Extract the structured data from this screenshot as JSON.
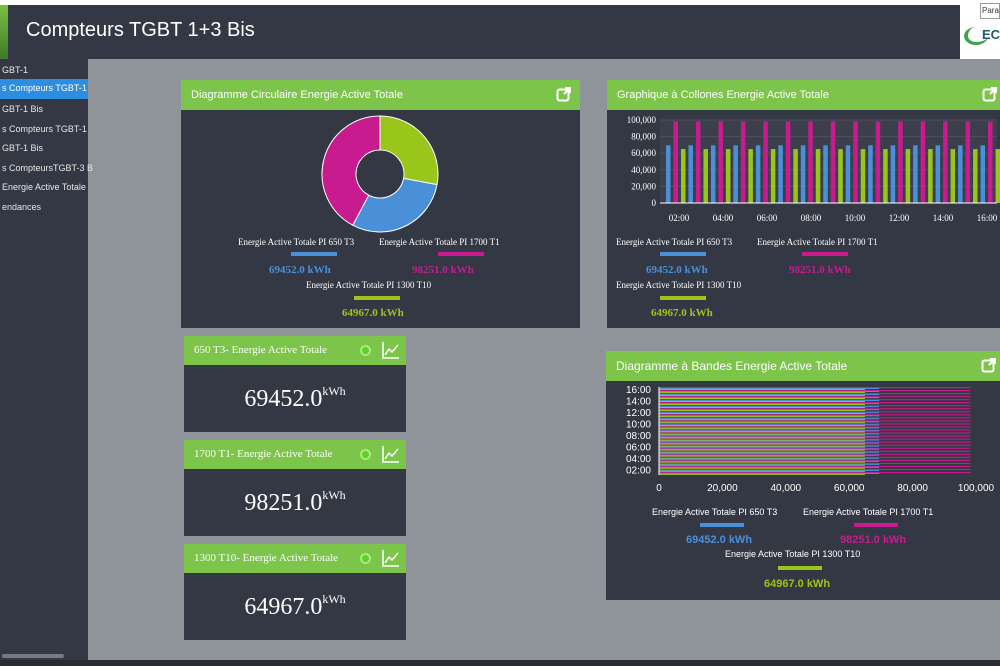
{
  "header": {
    "title": "Compteurs TGBT 1+3 Bis",
    "tooltip": "Para",
    "logo_letters": "EC"
  },
  "sidebar": {
    "items": [
      {
        "label": "GBT-1"
      },
      {
        "label": "s Compteurs TGBT-1"
      },
      {
        "label": "GBT-1 Bis"
      },
      {
        "label": "s Compteurs TGBT-1"
      },
      {
        "label": "GBT-1 Bis"
      },
      {
        "label": "s CompteursTGBT-3 B"
      },
      {
        "label": "Energie Active Totale"
      },
      {
        "label": "endances"
      }
    ],
    "active_index": 1
  },
  "colors": {
    "t3": "#4a90d9",
    "t1": "#c71b8f",
    "t10": "#9ac61c",
    "accent": "#7cc44a"
  },
  "legend": {
    "t3_label": "Energie Active Totale PI 650 T3",
    "t1_label": "Energie Active Totale PI 1700 T1",
    "t10_label": "Energie Active Totale PI 1300 T10",
    "t3_value": "69452.0 kWh",
    "t1_value": "98251.0 kWh",
    "t10_value": "64967.0 kWh"
  },
  "panels": {
    "pie_title": "Diagramme Circulaire Energie Active Totale",
    "column_title": "Graphique à Collones Energie Active Totale",
    "band_title": "Diagramme à Bandes Energie Active Totale"
  },
  "kpis": [
    {
      "title": "650 T3- Energie Active Totale",
      "value": "69452.0",
      "unit": "kWh"
    },
    {
      "title": "1700 T1- Energie Active Totale",
      "value": "98251.0",
      "unit": "kWh"
    },
    {
      "title": "1300 T10- Energie Active Totale",
      "value": "64967.0",
      "unit": "kWh"
    }
  ],
  "chart_data": [
    {
      "type": "pie",
      "categories": [
        "Energie Active Totale PI 650 T3",
        "Energie Active Totale PI 1700 T1",
        "Energie Active Totale PI 1300 T10"
      ],
      "values": [
        69452.0,
        98251.0,
        64967.0
      ]
    },
    {
      "type": "bar",
      "ylim": [
        0,
        100000
      ],
      "yticks": [
        "0",
        "20,000",
        "40,000",
        "60,000",
        "80,000",
        "100,000"
      ],
      "xticks": [
        "02:00",
        "04:00",
        "06:00",
        "08:00",
        "10:00",
        "12:00",
        "14:00",
        "16:00"
      ],
      "bar_groups": 15,
      "series": [
        {
          "name": "Energie Active Totale PI 650 T3",
          "value": 69452.0
        },
        {
          "name": "Energie Active Totale PI 1700 T1",
          "value": 98251.0
        },
        {
          "name": "Energie Active Totale PI 1300 T10",
          "value": 64967.0
        }
      ]
    },
    {
      "type": "bar",
      "orientation": "horizontal",
      "xlim": [
        0,
        100000
      ],
      "xticks": [
        "0",
        "20,000",
        "40,000",
        "60,000",
        "80,000",
        "100,000"
      ],
      "yticks": [
        "16:00",
        "14:00",
        "12:00",
        "10:00",
        "08:00",
        "06:00",
        "04:00",
        "02:00"
      ],
      "bar_groups": 29,
      "series": [
        {
          "name": "Energie Active Totale PI 650 T3",
          "value": 69452.0
        },
        {
          "name": "Energie Active Totale PI 1700 T1",
          "value": 98251.0
        },
        {
          "name": "Energie Active Totale PI 1300 T10",
          "value": 64967.0
        }
      ]
    }
  ]
}
